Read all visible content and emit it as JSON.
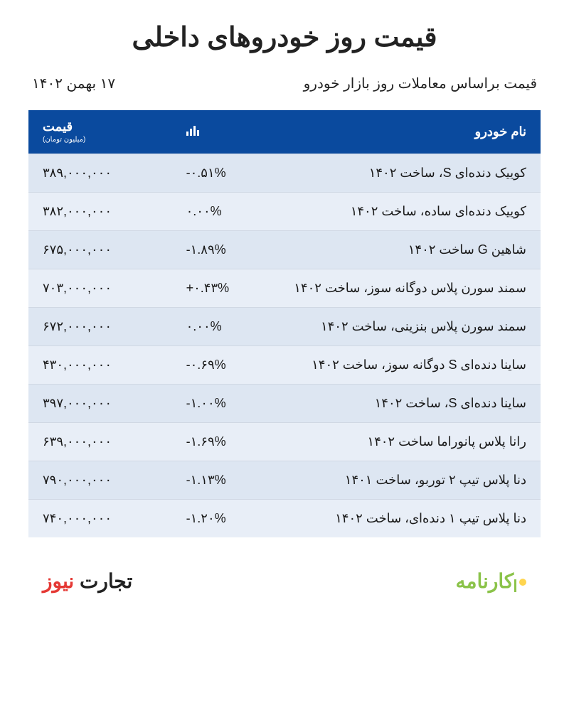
{
  "title": "قیمت روز خودروهای داخلی",
  "subtitle": "قیمت براساس معاملات روز بازار خودرو",
  "date": "۱۷ بهمن ۱۴۰۲",
  "table": {
    "headers": {
      "name": "نام خودرو",
      "change_icon": "📊",
      "price": "قیمت",
      "price_unit": "(میلیون تومان)"
    },
    "header_bg": "#0a4a9e",
    "header_text_color": "#ffffff",
    "row_bg_odd": "#dde6f2",
    "row_bg_even": "#e8eef7",
    "border_color": "#d0d8e4",
    "rows": [
      {
        "name": "کوییک دنده‌ای S، ساخت ۱۴۰۲",
        "change": "-۰.۵۱%",
        "price": "۳۸۹,۰۰۰,۰۰۰"
      },
      {
        "name": "کوییک دنده‌ای ساده، ساخت ۱۴۰۲",
        "change": "۰.۰۰%",
        "price": "۳۸۲,۰۰۰,۰۰۰"
      },
      {
        "name": "شاهین G ساخت ۱۴۰۲",
        "change": "-۱.۸۹%",
        "price": "۶۷۵,۰۰۰,۰۰۰"
      },
      {
        "name": "سمند سورن پلاس دوگانه سوز، ساخت ۱۴۰۲",
        "change": "+۰.۴۳%",
        "price": "۷۰۳,۰۰۰,۰۰۰"
      },
      {
        "name": "سمند سورن پلاس بنزینی، ساخت ۱۴۰۲",
        "change": "۰.۰۰%",
        "price": "۶۷۲,۰۰۰,۰۰۰"
      },
      {
        "name": "ساینا دنده‌ای S دوگانه سوز، ساخت ۱۴۰۲",
        "change": "-۰.۶۹%",
        "price": "۴۳۰,۰۰۰,۰۰۰"
      },
      {
        "name": "ساینا دنده‌ای S، ساخت ۱۴۰۲",
        "change": "-۱.۰۰%",
        "price": "۳۹۷,۰۰۰,۰۰۰"
      },
      {
        "name": "رانا پلاس پانوراما ساخت ۱۴۰۲",
        "change": "-۱.۶۹%",
        "price": "۶۳۹,۰۰۰,۰۰۰"
      },
      {
        "name": "دنا پلاس تیپ ۲ توربو، ساخت ۱۴۰۱",
        "change": "-۱.۱۳%",
        "price": "۷۹۰,۰۰۰,۰۰۰"
      },
      {
        "name": "دنا پلاس تیپ ۱ دنده‌ای، ساخت ۱۴۰۲",
        "change": "-۱.۲۰%",
        "price": "۷۴۰,۰۰۰,۰۰۰"
      }
    ]
  },
  "footer": {
    "karnameh": "کارنامه",
    "tejarat_part1": "تجارت",
    "tejarat_part2": " نیوز"
  },
  "colors": {
    "title": "#222222",
    "karnameh_green": "#8bc34a",
    "karnameh_yellow": "#ffd54f",
    "tejarat_red": "#e53935",
    "tejarat_black": "#222222"
  }
}
